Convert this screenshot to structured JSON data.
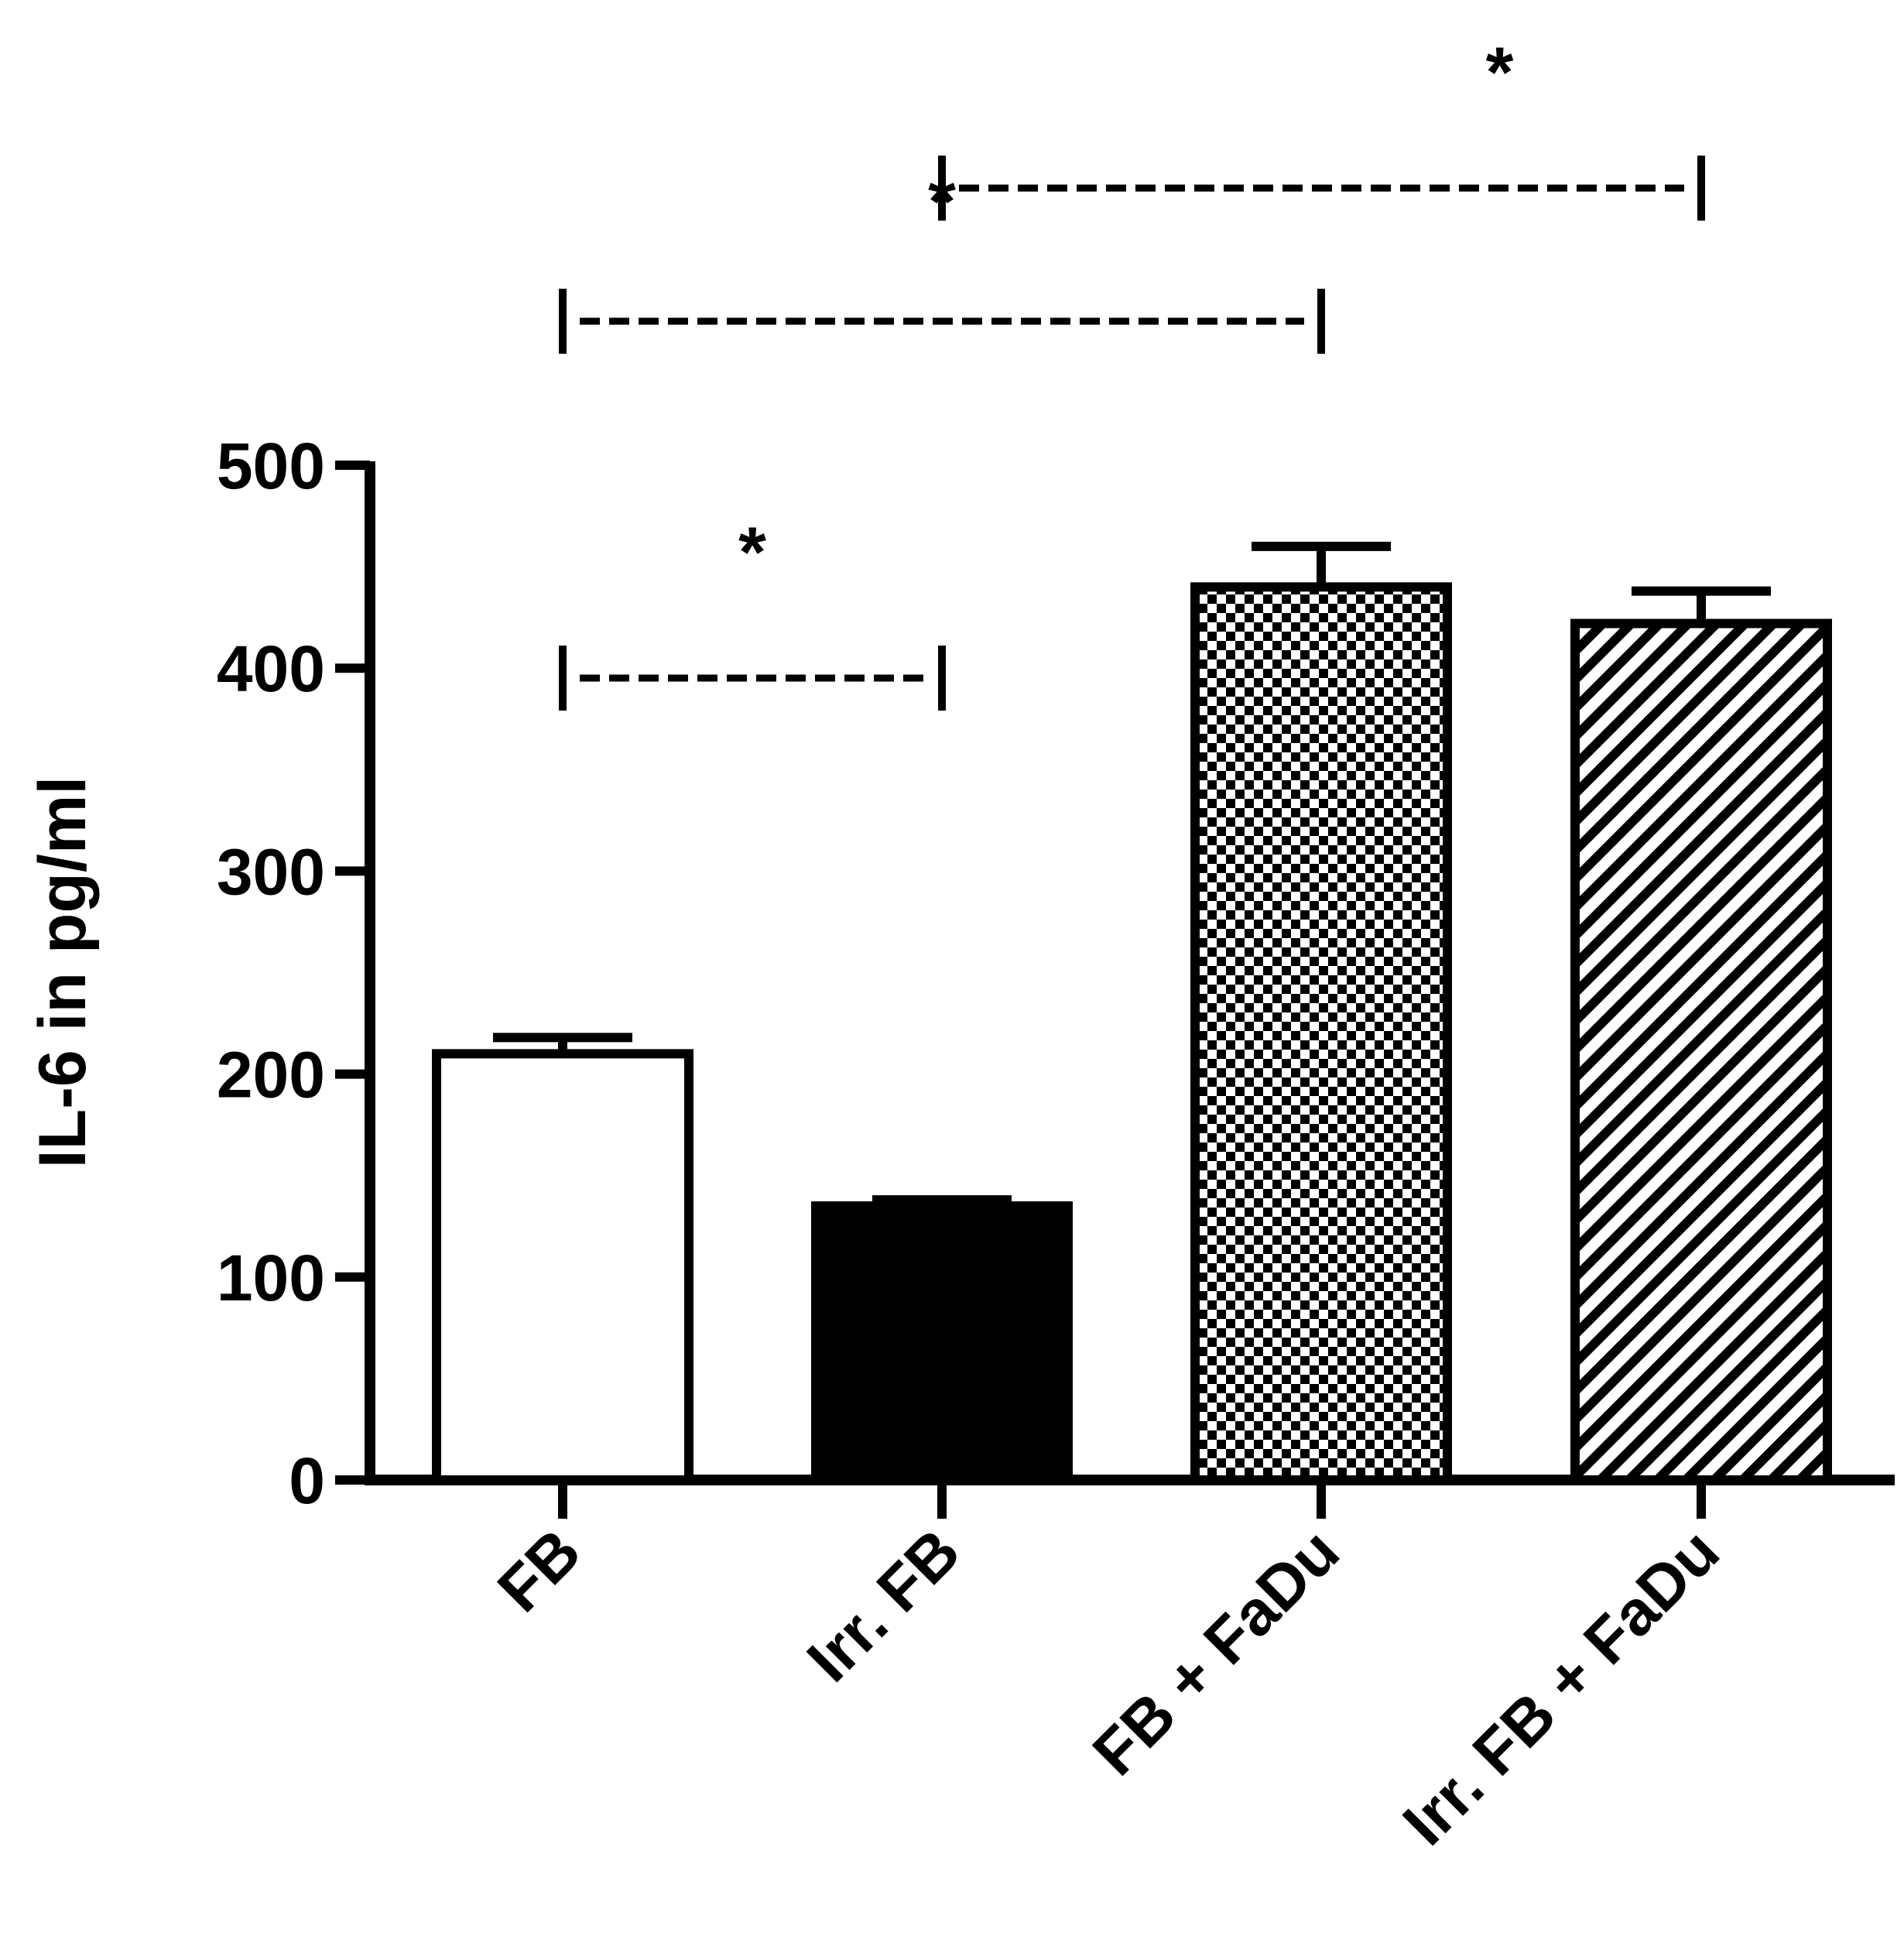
{
  "chart_data": {
    "type": "bar",
    "title": "",
    "xlabel": "",
    "ylabel": "IL-6 in pg/ml",
    "ylim": [
      0,
      500
    ],
    "yticks": [
      0,
      100,
      200,
      300,
      400,
      500
    ],
    "categories": [
      "FB",
      "Irr. FB",
      "FB + FaDu",
      "Irr. FB + FaDu"
    ],
    "values": [
      210,
      135,
      440,
      422
    ],
    "errors": [
      8,
      3,
      20,
      16
    ],
    "fills": [
      "white",
      "black",
      "checkerboard",
      "diagonal-stripes"
    ],
    "grid": false,
    "legend": "none",
    "significance": [
      {
        "from": 0,
        "to": 1,
        "label": "*"
      },
      {
        "from": 0,
        "to": 2,
        "label": "*"
      },
      {
        "from": 1,
        "to": 3,
        "label": "*"
      }
    ]
  }
}
